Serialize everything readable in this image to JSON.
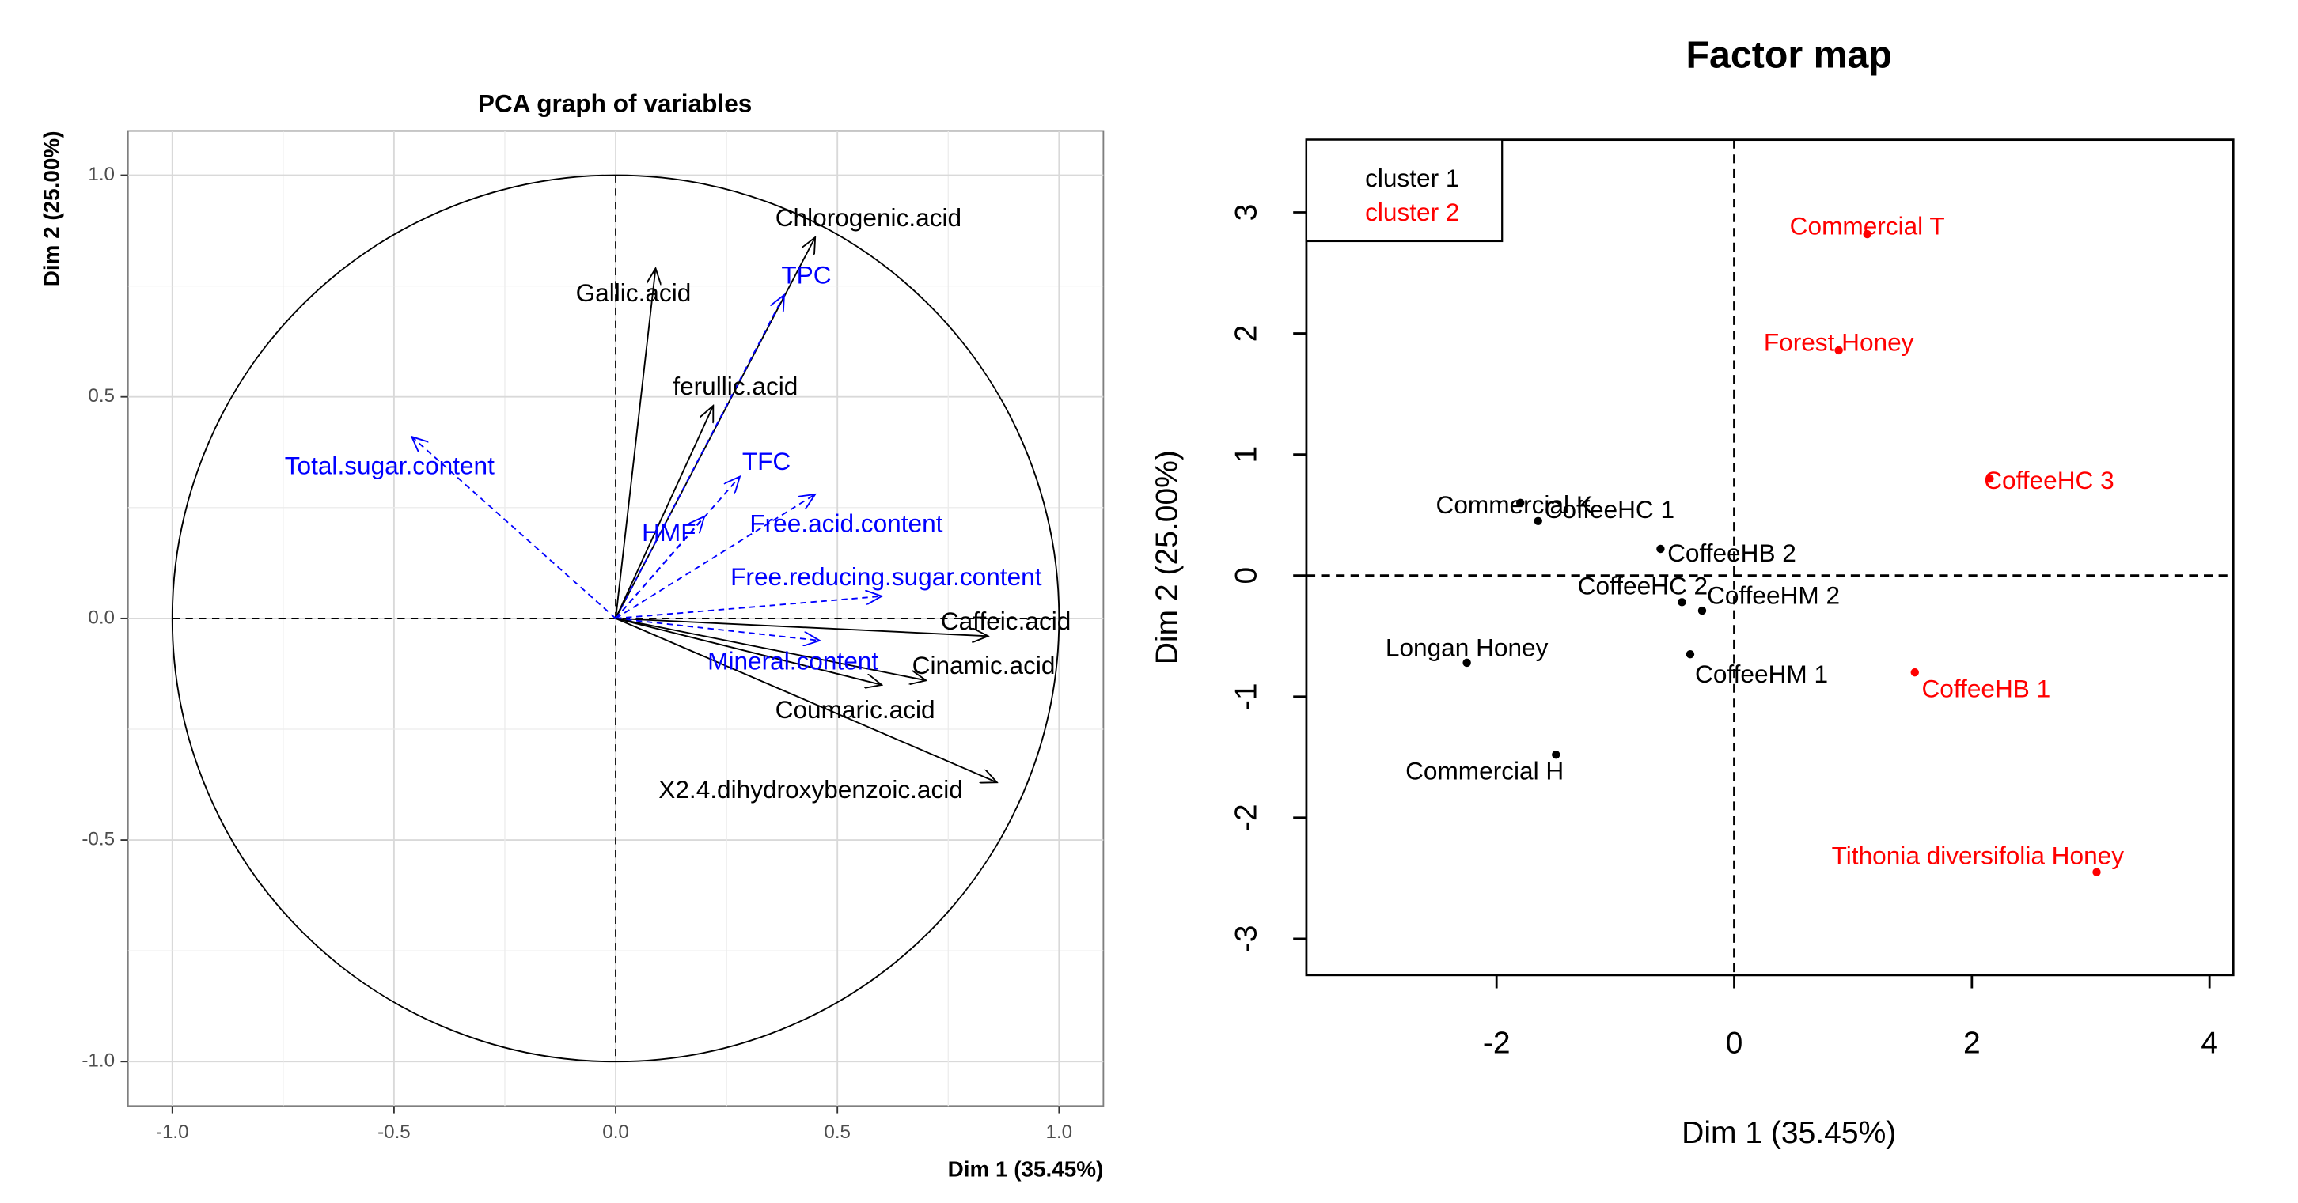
{
  "chart_data": [
    {
      "type": "scatter",
      "subtype": "pca-correlation-circle",
      "title": "PCA graph of variables",
      "xlabel": "Dim 1 (35.45%)",
      "ylabel": "Dim 2 (25.00%)",
      "xlim": [
        -1.1,
        1.1
      ],
      "ylim": [
        -1.1,
        1.1
      ],
      "xticks": [
        -1.0,
        -0.5,
        0.0,
        0.5,
        1.0
      ],
      "xtick_labels": [
        "-1.0",
        "-0.5",
        "0.0",
        "0.5",
        "1.0"
      ],
      "yticks": [
        -1.0,
        -0.5,
        0.0,
        0.5,
        1.0
      ],
      "ytick_labels": [
        "-1.0",
        "-0.5",
        "0.0",
        "0.5",
        "1.0"
      ],
      "grid": true,
      "unit_circle": true,
      "active_color": "#000000",
      "supplementary_color": "#0000ff",
      "variables": [
        {
          "name": "Chlorogenic.acid",
          "x": 0.45,
          "y": 0.86,
          "supplementary": false,
          "lx": 0.57,
          "ly": 0.9
        },
        {
          "name": "Gallic.acid",
          "x": 0.09,
          "y": 0.79,
          "supplementary": false,
          "lx": 0.04,
          "ly": 0.73
        },
        {
          "name": "TPC",
          "x": 0.38,
          "y": 0.73,
          "supplementary": true,
          "lx": 0.43,
          "ly": 0.77
        },
        {
          "name": "ferullic.acid",
          "x": 0.22,
          "y": 0.48,
          "supplementary": false,
          "lx": 0.27,
          "ly": 0.52
        },
        {
          "name": "Total.sugar.content",
          "x": -0.46,
          "y": 0.41,
          "supplementary": true,
          "lx": -0.51,
          "ly": 0.34
        },
        {
          "name": "TFC",
          "x": 0.28,
          "y": 0.32,
          "supplementary": true,
          "lx": 0.34,
          "ly": 0.35
        },
        {
          "name": "Free.acid.content",
          "x": 0.45,
          "y": 0.28,
          "supplementary": true,
          "lx": 0.52,
          "ly": 0.21
        },
        {
          "name": "HMF",
          "x": 0.2,
          "y": 0.23,
          "supplementary": true,
          "lx": 0.12,
          "ly": 0.19
        },
        {
          "name": "Free.reducing.sugar.content",
          "x": 0.6,
          "y": 0.05,
          "supplementary": true,
          "lx": 0.61,
          "ly": 0.09
        },
        {
          "name": "Caffeic.acid",
          "x": 0.84,
          "y": -0.04,
          "supplementary": false,
          "lx": 0.88,
          "ly": -0.01
        },
        {
          "name": "Mineral.content",
          "x": 0.46,
          "y": -0.05,
          "supplementary": true,
          "lx": 0.4,
          "ly": -0.1
        },
        {
          "name": "Cinamic.acid",
          "x": 0.7,
          "y": -0.14,
          "supplementary": false,
          "lx": 0.83,
          "ly": -0.11
        },
        {
          "name": "Coumaric.acid",
          "x": 0.6,
          "y": -0.15,
          "supplementary": false,
          "lx": 0.54,
          "ly": -0.21
        },
        {
          "name": "X2.4.dihydroxybenzoic.acid",
          "x": 0.86,
          "y": -0.37,
          "supplementary": false,
          "lx": 0.44,
          "ly": -0.39
        }
      ]
    },
    {
      "type": "scatter",
      "subtype": "cluster-factor-map",
      "title": "Factor map",
      "xlabel": "Dim 1 (35.45%)",
      "ylabel": "Dim 2 (25.00%)",
      "xlim": [
        -3.6,
        4.2
      ],
      "ylim": [
        -3.3,
        3.6
      ],
      "xticks": [
        -2,
        0,
        2,
        4
      ],
      "xtick_labels": [
        "-2",
        "0",
        "2",
        "4"
      ],
      "yticks": [
        -3,
        -2,
        -1,
        0,
        1,
        2,
        3
      ],
      "ytick_labels": [
        "-3",
        "-2",
        "-1",
        "0",
        "1",
        "2",
        "3"
      ],
      "grid": false,
      "legend": {
        "position": "top-left",
        "entries": [
          {
            "label": "cluster 1",
            "color": "#000000"
          },
          {
            "label": "cluster 2",
            "color": "#ff0000"
          }
        ]
      },
      "points": [
        {
          "name": "Commercial T",
          "x": 1.12,
          "y": 2.82,
          "cluster": 2,
          "lx": 1.12,
          "ly": 2.87
        },
        {
          "name": "Forest Honey",
          "x": 0.88,
          "y": 1.86,
          "cluster": 2,
          "lx": 0.88,
          "ly": 1.91
        },
        {
          "name": "CoffeeHC 3",
          "x": 2.15,
          "y": 0.8,
          "cluster": 2,
          "lx": 2.65,
          "ly": 0.77
        },
        {
          "name": "Commercial K",
          "x": -1.8,
          "y": 0.6,
          "cluster": 1,
          "lx": -1.85,
          "ly": 0.57
        },
        {
          "name": "CoffeeHC 1",
          "x": -1.65,
          "y": 0.45,
          "cluster": 1,
          "lx": -1.05,
          "ly": 0.53
        },
        {
          "name": "CoffeeHB 2",
          "x": -0.62,
          "y": 0.22,
          "cluster": 1,
          "lx": -0.02,
          "ly": 0.17
        },
        {
          "name": "CoffeeHC 2",
          "x": -0.44,
          "y": -0.22,
          "cluster": 1,
          "lx": -0.77,
          "ly": -0.1
        },
        {
          "name": "CoffeeHM 2",
          "x": -0.27,
          "y": -0.29,
          "cluster": 1,
          "lx": 0.33,
          "ly": -0.18
        },
        {
          "name": "Longan Honey",
          "x": -2.25,
          "y": -0.72,
          "cluster": 1,
          "lx": -2.25,
          "ly": -0.61
        },
        {
          "name": "CoffeeHM 1",
          "x": -0.37,
          "y": -0.65,
          "cluster": 1,
          "lx": 0.23,
          "ly": -0.83
        },
        {
          "name": "CoffeeHB 1",
          "x": 1.52,
          "y": -0.8,
          "cluster": 2,
          "lx": 2.12,
          "ly": -0.95
        },
        {
          "name": "Commercial H",
          "x": -1.5,
          "y": -1.48,
          "cluster": 1,
          "lx": -2.1,
          "ly": -1.63
        },
        {
          "name": "Tithonia diversifolia Honey",
          "x": 3.05,
          "y": -2.45,
          "cluster": 2,
          "lx": 2.05,
          "ly": -2.33
        }
      ]
    }
  ]
}
